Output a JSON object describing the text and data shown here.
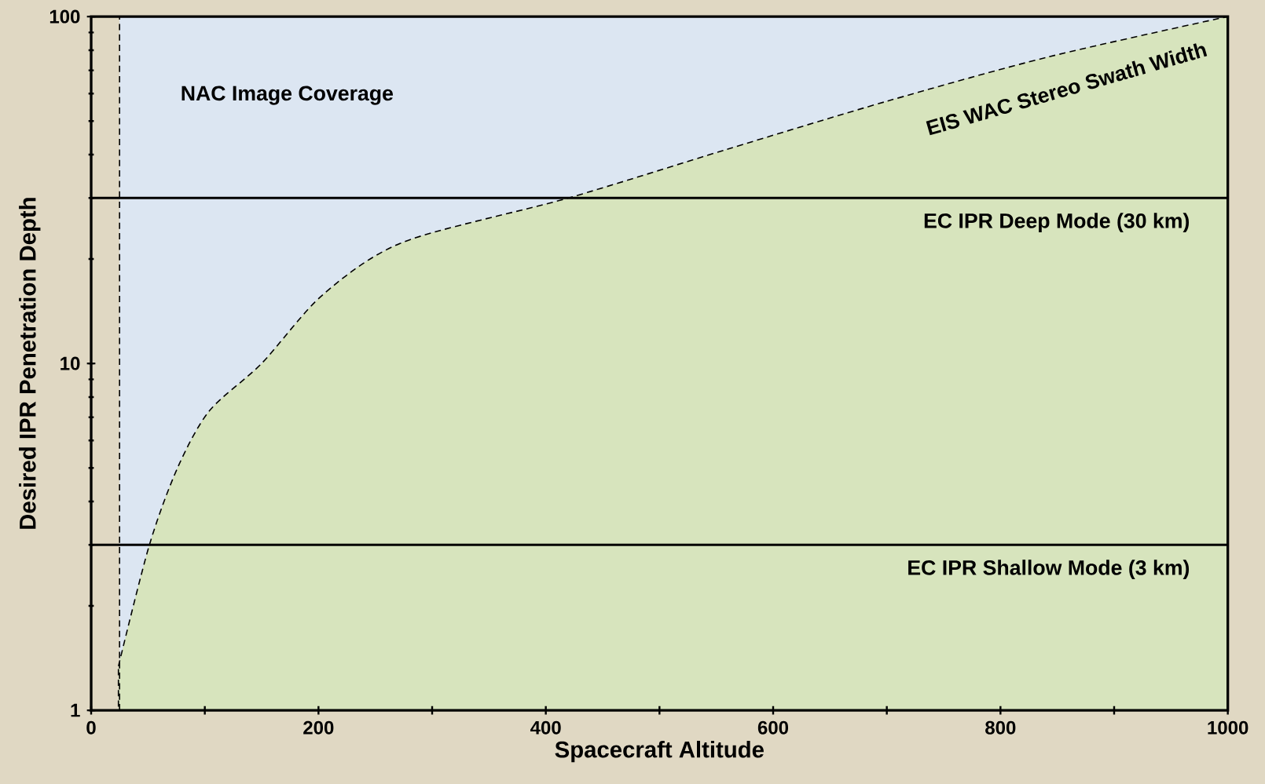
{
  "chart_data": {
    "type": "area",
    "xlabel": "Spacecraft Altitude",
    "ylabel": "Desired IPR Penetration Depth",
    "log": "y",
    "xlim": [
      0,
      1000
    ],
    "ylim": [
      1,
      100
    ],
    "xticks": [
      0,
      {
        "value": 100,
        "label": null
      },
      200,
      {
        "value": 300,
        "label": null
      },
      400,
      {
        "value": 500,
        "label": null
      },
      600,
      {
        "value": 700,
        "label": null
      },
      800,
      {
        "value": 900,
        "label": null
      },
      1000
    ],
    "yticks": [
      1,
      10,
      100
    ],
    "series": [
      {
        "name": "EIS WAC Stereo Swath Width",
        "color": "#d7e4bd",
        "line_style": "dashed",
        "x": [
          24,
          51,
          76,
          104,
          150,
          204,
          275,
          420,
          559,
          700,
          842,
          1000
        ],
        "values": [
          1.34,
          2.98,
          5.0,
          7.3,
          10,
          15.8,
          22.4,
          30,
          41.4,
          57,
          76.5,
          100
        ]
      }
    ],
    "bands": [
      {
        "axis": "x",
        "from": 25,
        "to": 1000,
        "label": "NAC Image Coverage",
        "color": "#dce6f2"
      }
    ],
    "ref_lines": [
      {
        "axis": "x",
        "value": 25,
        "line_style": "dashed"
      },
      {
        "axis": "y",
        "value": 30,
        "label": "EC IPR Deep Mode (30 km)"
      },
      {
        "axis": "y",
        "value": 3,
        "label": "EC IPR Shallow Mode (3 km)"
      }
    ]
  }
}
